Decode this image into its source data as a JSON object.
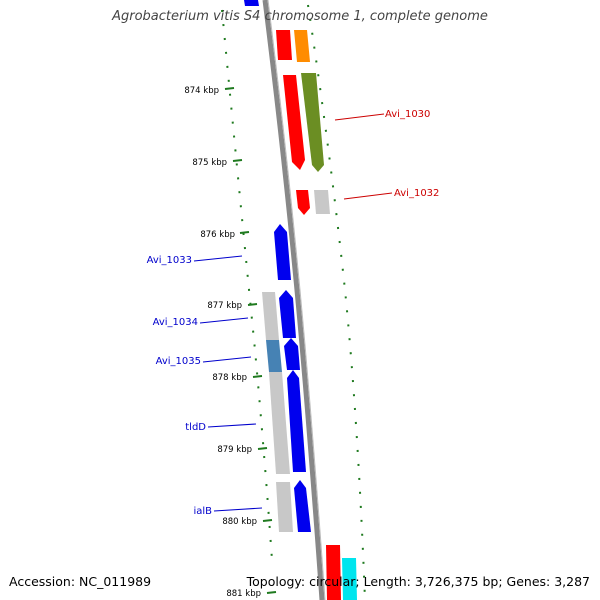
{
  "title": "Agrobacterium vitis S4 chromosome 1, complete genome",
  "footer": {
    "accession": "Accession: NC_011989",
    "summary": "Topology: circular; Length: 3,726,375 bp; Genes: 3,287"
  },
  "colors": {
    "backbone": "#888888",
    "tick": "#1f7a1f",
    "label_red": "#cc0000",
    "label_blue": "#0000cc",
    "label_dark": "#000000"
  },
  "ticks": [
    {
      "label": "874 kbp"
    },
    {
      "label": "875 kbp"
    },
    {
      "label": "876 kbp"
    },
    {
      "label": "877 kbp"
    },
    {
      "label": "878 kbp"
    },
    {
      "label": "879 kbp"
    },
    {
      "label": "880 kbp"
    },
    {
      "label": "881 kbp"
    }
  ],
  "gene_labels": [
    {
      "name": "Avi_1030",
      "color": "red"
    },
    {
      "name": "Avi_1032",
      "color": "red"
    },
    {
      "name": "Avi_1033",
      "color": "blue"
    },
    {
      "name": "Avi_1034",
      "color": "blue"
    },
    {
      "name": "Avi_1035",
      "color": "blue"
    },
    {
      "name": "tldD",
      "color": "blue"
    },
    {
      "name": "ialB",
      "color": "blue"
    }
  ]
}
